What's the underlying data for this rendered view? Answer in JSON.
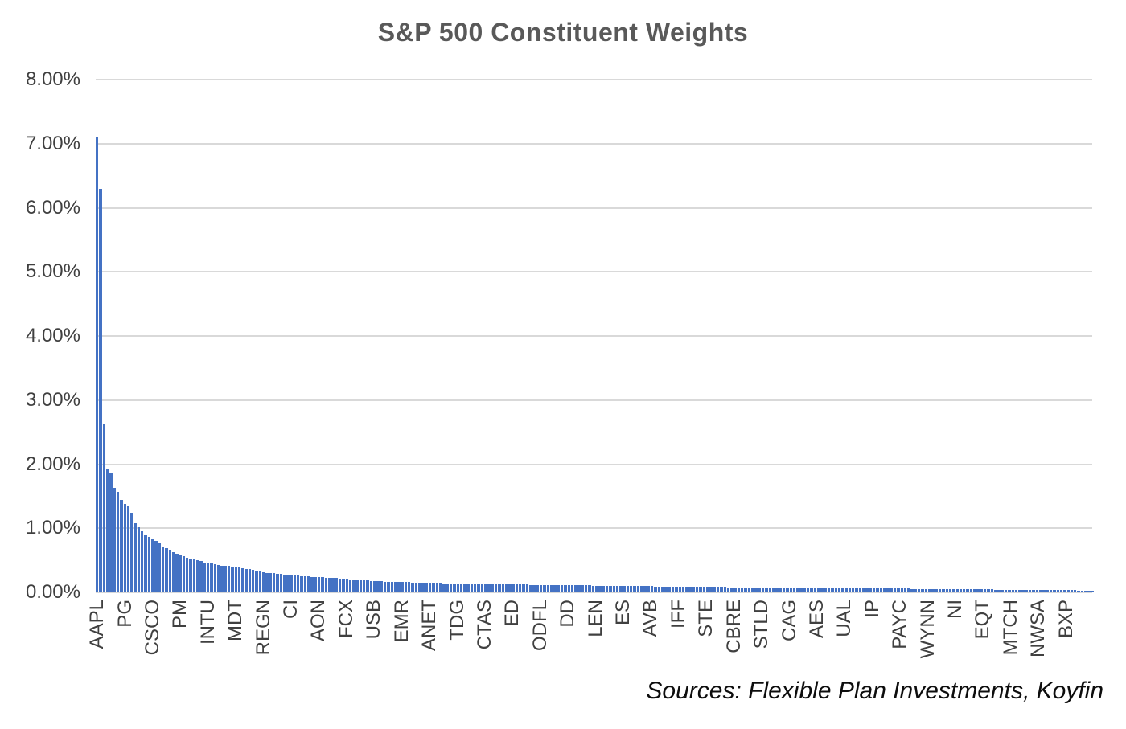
{
  "title": "S&P 500 Constituent Weights",
  "source_note": "Sources: Flexible Plan Investments, Koyfin",
  "colors": {
    "bar": "#4472C4",
    "gridline": "#D9D9D9",
    "title_text": "#595959",
    "tick_label": "#404040",
    "source_text": "#0D0D0D",
    "background": "#FFFFFF"
  },
  "chart_data": {
    "type": "bar",
    "title": "S&P 500 Constituent Weights",
    "xlabel": "",
    "ylabel": "",
    "unit": "%",
    "grid": "horizontal",
    "legend": "none",
    "y_axis": {
      "min": 0,
      "max": 8,
      "tick_interval": 1,
      "tick_labels": [
        "0.00%",
        "1.00%",
        "2.00%",
        "3.00%",
        "4.00%",
        "5.00%",
        "6.00%",
        "7.00%",
        "8.00%"
      ]
    },
    "x_tick_interval": 8,
    "x_tick_labels": [
      "AAPL",
      "PG",
      "CSCO",
      "PM",
      "INTU",
      "MDT",
      "REGN",
      "CI",
      "AON",
      "FCX",
      "USB",
      "EMR",
      "ANET",
      "TDG",
      "CTAS",
      "ED",
      "ODFL",
      "DD",
      "LEN",
      "ES",
      "AVB",
      "IFF",
      "STE",
      "CBRE",
      "STLD",
      "CAG",
      "AES",
      "UAL",
      "IP",
      "PAYC",
      "WYNN",
      "NI",
      "EQT",
      "MTCH",
      "NWSA",
      "BXP"
    ],
    "values": [
      7.1,
      6.3,
      2.63,
      1.92,
      1.85,
      1.63,
      1.57,
      1.44,
      1.38,
      1.34,
      1.24,
      1.08,
      1.01,
      0.95,
      0.89,
      0.86,
      0.83,
      0.8,
      0.78,
      0.72,
      0.69,
      0.66,
      0.63,
      0.6,
      0.58,
      0.56,
      0.54,
      0.52,
      0.51,
      0.5,
      0.49,
      0.47,
      0.46,
      0.45,
      0.44,
      0.43,
      0.42,
      0.415,
      0.41,
      0.405,
      0.4,
      0.39,
      0.38,
      0.37,
      0.36,
      0.35,
      0.34,
      0.32,
      0.31,
      0.305,
      0.3,
      0.295,
      0.29,
      0.285,
      0.28,
      0.275,
      0.27,
      0.265,
      0.26,
      0.255,
      0.25,
      0.248,
      0.244,
      0.24,
      0.237,
      0.233,
      0.23,
      0.227,
      0.223,
      0.22,
      0.217,
      0.213,
      0.21,
      0.205,
      0.2,
      0.196,
      0.192,
      0.188,
      0.184,
      0.18,
      0.176,
      0.174,
      0.171,
      0.169,
      0.167,
      0.165,
      0.163,
      0.161,
      0.16,
      0.158,
      0.157,
      0.155,
      0.154,
      0.152,
      0.151,
      0.15,
      0.148,
      0.147,
      0.146,
      0.145,
      0.144,
      0.143,
      0.142,
      0.141,
      0.14,
      0.139,
      0.137,
      0.136,
      0.135,
      0.133,
      0.132,
      0.131,
      0.13,
      0.129,
      0.128,
      0.127,
      0.127,
      0.126,
      0.126,
      0.125,
      0.125,
      0.124,
      0.122,
      0.121,
      0.12,
      0.118,
      0.117,
      0.116,
      0.115,
      0.114,
      0.113,
      0.113,
      0.112,
      0.112,
      0.111,
      0.111,
      0.11,
      0.109,
      0.109,
      0.108,
      0.108,
      0.107,
      0.107,
      0.106,
      0.105,
      0.104,
      0.104,
      0.103,
      0.102,
      0.102,
      0.101,
      0.101,
      0.1,
      0.099,
      0.099,
      0.098,
      0.097,
      0.097,
      0.096,
      0.096,
      0.095,
      0.094,
      0.094,
      0.093,
      0.092,
      0.092,
      0.091,
      0.091,
      0.09,
      0.089,
      0.089,
      0.088,
      0.087,
      0.087,
      0.086,
      0.086,
      0.085,
      0.084,
      0.084,
      0.083,
      0.082,
      0.082,
      0.081,
      0.081,
      0.08,
      0.08,
      0.079,
      0.079,
      0.078,
      0.078,
      0.078,
      0.077,
      0.077,
      0.077,
      0.076,
      0.076,
      0.075,
      0.075,
      0.075,
      0.074,
      0.074,
      0.073,
      0.073,
      0.072,
      0.072,
      0.071,
      0.071,
      0.07,
      0.07,
      0.069,
      0.069,
      0.068,
      0.068,
      0.067,
      0.067,
      0.066,
      0.066,
      0.065,
      0.065,
      0.064,
      0.064,
      0.063,
      0.063,
      0.062,
      0.062,
      0.061,
      0.061,
      0.06,
      0.06,
      0.059,
      0.059,
      0.058,
      0.058,
      0.057,
      0.057,
      0.056,
      0.056,
      0.055,
      0.055,
      0.054,
      0.054,
      0.053,
      0.053,
      0.052,
      0.052,
      0.051,
      0.051,
      0.05,
      0.05,
      0.049,
      0.049,
      0.048,
      0.048,
      0.047,
      0.047,
      0.046,
      0.046,
      0.045,
      0.045,
      0.044,
      0.044,
      0.043,
      0.043,
      0.042,
      0.042,
      0.041,
      0.041,
      0.04,
      0.04,
      0.039,
      0.039,
      0.038,
      0.038,
      0.037,
      0.037,
      0.036,
      0.036,
      0.035,
      0.035,
      0.034,
      0.034,
      0.033,
      0.032,
      0.031,
      0.03,
      0.029,
      0.028,
      0.027
    ]
  }
}
